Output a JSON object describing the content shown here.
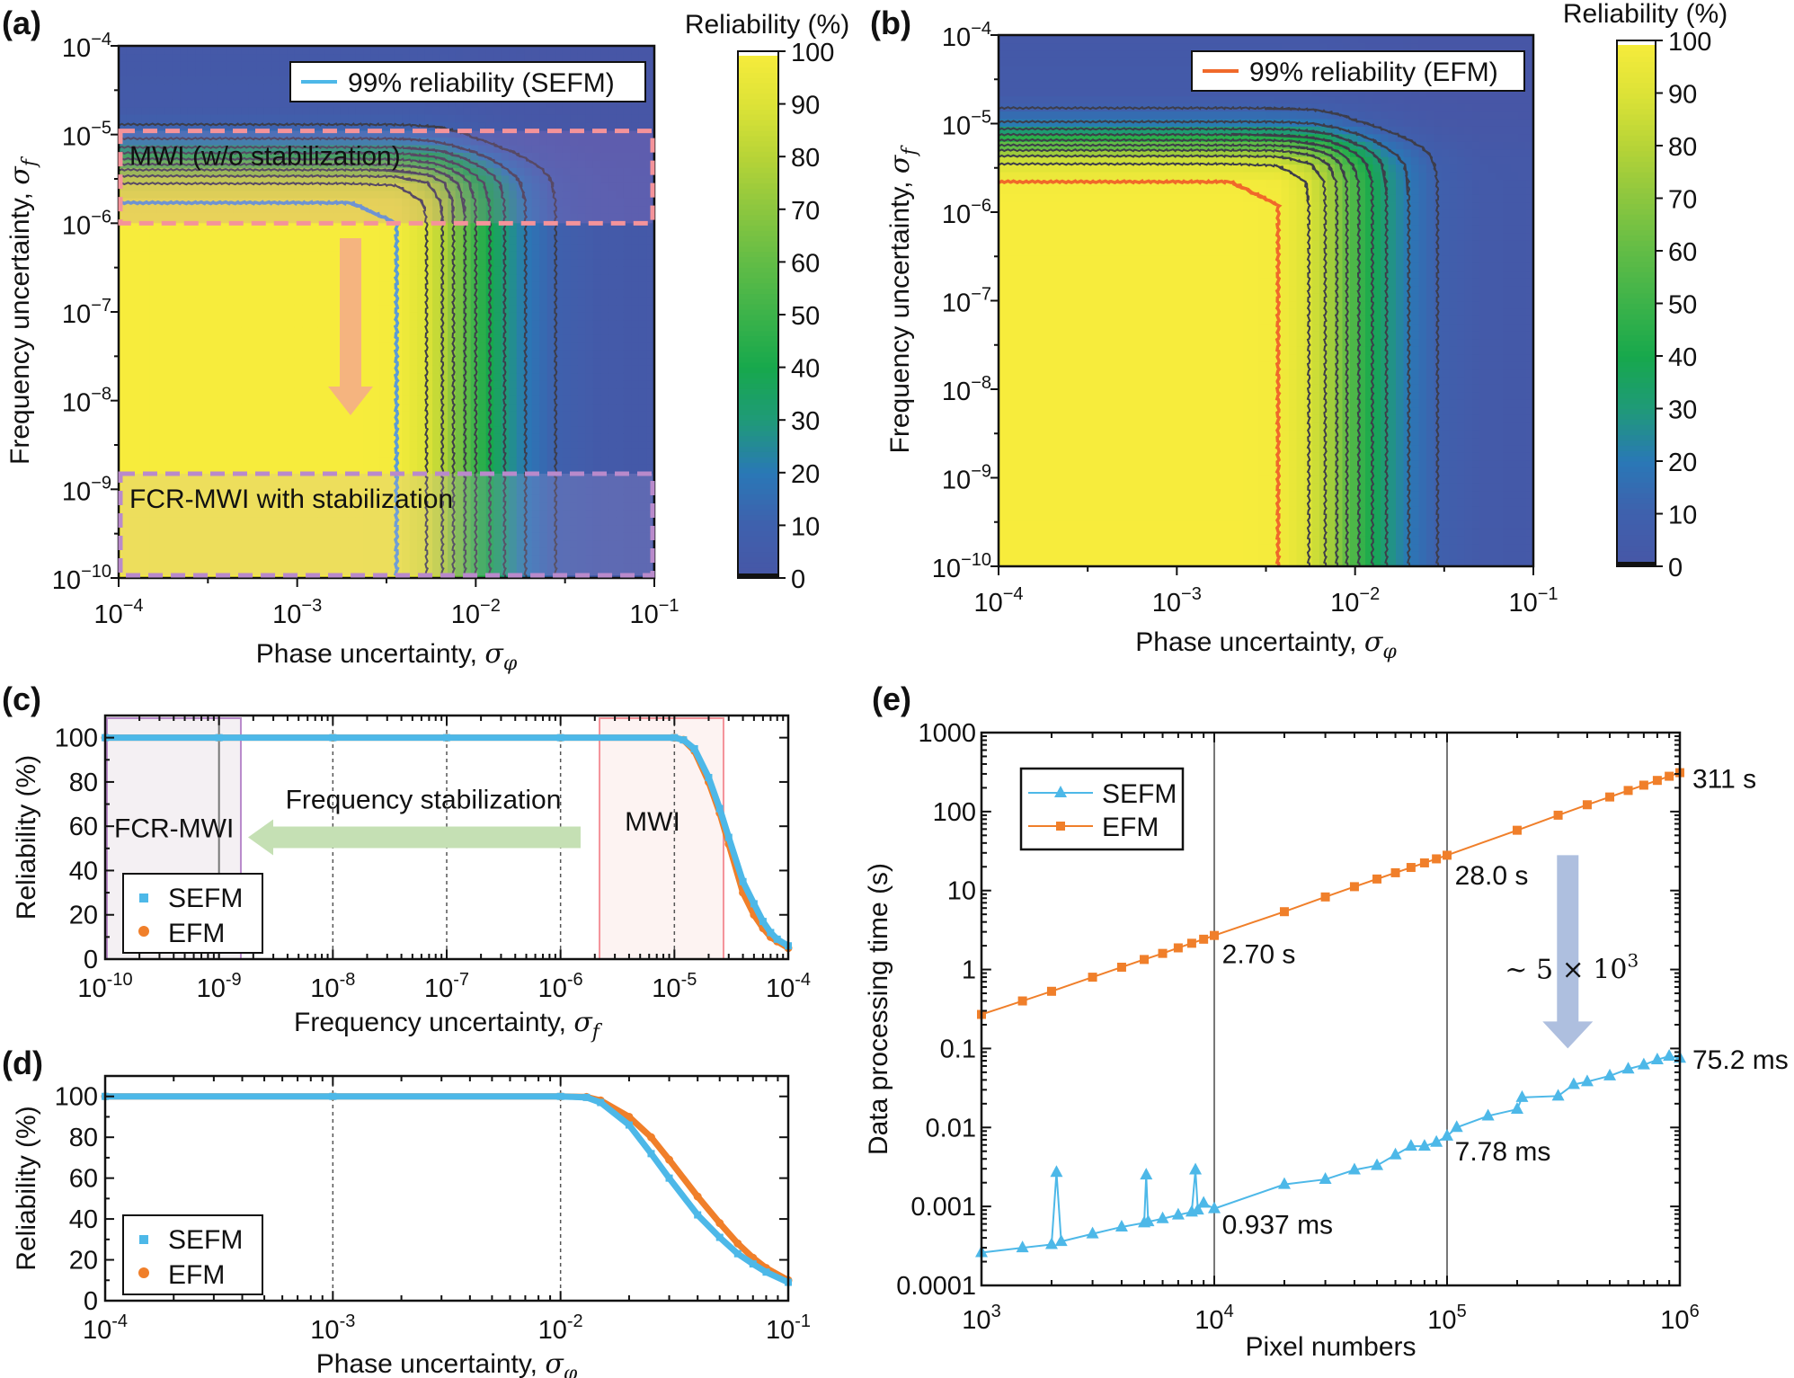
{
  "colorscale": [
    [
      0,
      "#4756a6"
    ],
    [
      10,
      "#3f60ad"
    ],
    [
      20,
      "#2a78b6"
    ],
    [
      30,
      "#1f9a78"
    ],
    [
      40,
      "#17a84c"
    ],
    [
      50,
      "#3cb34a"
    ],
    [
      60,
      "#62bc46"
    ],
    [
      70,
      "#8cc63f"
    ],
    [
      80,
      "#b7d437"
    ],
    [
      90,
      "#dde337"
    ],
    [
      100,
      "#f7ec3c"
    ]
  ],
  "colors": {
    "sefm": "#4db8e8",
    "efm": "#f07f2a",
    "contour": "#3d3d4a",
    "sefm_99": "#5b9bd5",
    "efm_99": "#f0692a",
    "mwi_box": "#f4939a",
    "fcr_box": "#b98acb",
    "stab_arrow": "#c5e0b4",
    "down_arrow_a": "#f4b183",
    "down_arrow_e": "#aebfdf"
  },
  "chart_data": [
    {
      "panel": "(a)",
      "type": "heatmap",
      "xlabel": "Phase uncertainty, ",
      "xsym": "σ",
      "xsub": "φ",
      "ylabel": "Frequency uncertainty, ",
      "ysym": "σ",
      "ysub": "f",
      "xscale": "log",
      "yscale": "log",
      "xlim": [
        0.0001,
        0.1
      ],
      "ylim": [
        1e-10,
        0.0001
      ],
      "xticks": [
        {
          "b": "10",
          "e": "−4"
        },
        {
          "b": "10",
          "e": "−3"
        },
        {
          "b": "10",
          "e": "−2"
        },
        {
          "b": "10",
          "e": "−1"
        }
      ],
      "yticks": [
        {
          "b": "10",
          "e": "−10"
        },
        {
          "b": "10",
          "e": "−9"
        },
        {
          "b": "10",
          "e": "−8"
        },
        {
          "b": "10",
          "e": "−7"
        },
        {
          "b": "10",
          "e": "−6"
        },
        {
          "b": "10",
          "e": "−5"
        },
        {
          "b": "10",
          "e": "−4"
        }
      ],
      "colorbar": {
        "title": "Reliability (%)",
        "range": [
          0,
          100
        ],
        "ticks": [
          "0",
          "10",
          "20",
          "30",
          "40",
          "50",
          "60",
          "70",
          "80",
          "90",
          "100"
        ]
      },
      "contour_levels": [
        10,
        20,
        30,
        40,
        50,
        60,
        70,
        80,
        90
      ],
      "highlight_level": 99,
      "legend": "99% reliability (SEFM)",
      "reliability_vs_phase": [
        [
          0.0001,
          100
        ],
        [
          0.002,
          100
        ],
        [
          0.0036,
          99
        ],
        [
          0.0053,
          90
        ],
        [
          0.0065,
          80
        ],
        [
          0.0075,
          70
        ],
        [
          0.0087,
          60
        ],
        [
          0.01,
          50
        ],
        [
          0.012,
          40
        ],
        [
          0.0145,
          30
        ],
        [
          0.019,
          20
        ],
        [
          0.028,
          10
        ],
        [
          0.05,
          4
        ],
        [
          0.1,
          3
        ]
      ],
      "reliability_vs_frequency": [
        [
          1e-10,
          100
        ],
        [
          1e-06,
          100
        ],
        [
          1.7e-06,
          99
        ],
        [
          2.8e-06,
          90
        ],
        [
          3.4e-06,
          80
        ],
        [
          4e-06,
          70
        ],
        [
          4.6e-06,
          60
        ],
        [
          5.3e-06,
          50
        ],
        [
          6.2e-06,
          40
        ],
        [
          7.2e-06,
          30
        ],
        [
          9e-06,
          20
        ],
        [
          1.3e-05,
          10
        ],
        [
          2e-05,
          4
        ],
        [
          0.0001,
          3
        ]
      ],
      "regions": [
        {
          "label": "MWI (w/o stabilization)",
          "frequency_range": [
            1e-06,
            1.1e-05
          ]
        },
        {
          "label": "FCR-MWI with stabilization",
          "frequency_range": [
            1e-10,
            1.5e-09
          ]
        }
      ]
    },
    {
      "panel": "(b)",
      "type": "heatmap",
      "xlabel": "Phase uncertainty, ",
      "xsym": "σ",
      "xsub": "φ",
      "ylabel": "Frequency uncertainty, ",
      "ysym": "σ",
      "ysub": "f",
      "xscale": "log",
      "yscale": "log",
      "xlim": [
        0.0001,
        0.1
      ],
      "ylim": [
        1e-10,
        0.0001
      ],
      "xticks": [
        {
          "b": "10",
          "e": "−4"
        },
        {
          "b": "10",
          "e": "−3"
        },
        {
          "b": "10",
          "e": "−2"
        },
        {
          "b": "10",
          "e": "−1"
        }
      ],
      "yticks": [
        {
          "b": "10",
          "e": "−10"
        },
        {
          "b": "10",
          "e": "−9"
        },
        {
          "b": "10",
          "e": "−8"
        },
        {
          "b": "10",
          "e": "−7"
        },
        {
          "b": "10",
          "e": "−6"
        },
        {
          "b": "10",
          "e": "−5"
        },
        {
          "b": "10",
          "e": "−4"
        }
      ],
      "colorbar": {
        "title": "Reliability (%)",
        "range": [
          0,
          100
        ],
        "ticks": [
          "0",
          "10",
          "20",
          "30",
          "40",
          "50",
          "60",
          "70",
          "80",
          "90",
          "100"
        ]
      },
      "contour_levels": [
        10,
        20,
        30,
        40,
        50,
        60,
        70,
        80,
        90
      ],
      "highlight_level": 99,
      "legend": "99% reliability (EFM)",
      "reliability_vs_phase": [
        [
          0.0001,
          100
        ],
        [
          0.002,
          100
        ],
        [
          0.0037,
          99
        ],
        [
          0.0055,
          90
        ],
        [
          0.0068,
          80
        ],
        [
          0.0079,
          70
        ],
        [
          0.009,
          60
        ],
        [
          0.0105,
          50
        ],
        [
          0.0125,
          40
        ],
        [
          0.015,
          30
        ],
        [
          0.02,
          20
        ],
        [
          0.029,
          10
        ],
        [
          0.05,
          4
        ],
        [
          0.1,
          3
        ]
      ],
      "reliability_vs_frequency": [
        [
          1e-10,
          100
        ],
        [
          1.2e-06,
          100
        ],
        [
          2.2e-06,
          99
        ],
        [
          3.5e-06,
          90
        ],
        [
          4.3e-06,
          80
        ],
        [
          5e-06,
          70
        ],
        [
          5.7e-06,
          60
        ],
        [
          6.5e-06,
          50
        ],
        [
          7.5e-06,
          40
        ],
        [
          8.7e-06,
          30
        ],
        [
          1.05e-05,
          20
        ],
        [
          1.5e-05,
          10
        ],
        [
          2.2e-05,
          4
        ],
        [
          0.0001,
          3
        ]
      ]
    },
    {
      "panel": "(c)",
      "type": "scatter",
      "xlabel": "Frequency uncertainty, ",
      "xsym": "σ",
      "xsub": "f",
      "ylabel": "Reliability (%)",
      "xscale": "log",
      "xlim": [
        1e-10,
        0.0001
      ],
      "ylim": [
        0,
        110
      ],
      "xticks": [
        {
          "b": "10",
          "e": "-10"
        },
        {
          "b": "10",
          "e": "-9"
        },
        {
          "b": "10",
          "e": "-8"
        },
        {
          "b": "10",
          "e": "-7"
        },
        {
          "b": "10",
          "e": "-6"
        },
        {
          "b": "10",
          "e": "-5"
        },
        {
          "b": "10",
          "e": "-4"
        }
      ],
      "yticks": [
        "0",
        "20",
        "40",
        "60",
        "80",
        "100"
      ],
      "legend_placement": "bottom-left",
      "series": [
        {
          "name": "SEFM",
          "marker": "square",
          "x": [
            1e-10,
            1e-09,
            1e-08,
            1e-07,
            1e-06,
            1e-05,
            1.2e-05,
            1.5e-05,
            2e-05,
            2.5e-05,
            3e-05,
            4e-05,
            5e-05,
            6e-05,
            7e-05,
            8e-05,
            0.0001
          ],
          "y": [
            100,
            100,
            100,
            100,
            100,
            100,
            99,
            95,
            82,
            68,
            55,
            35,
            25,
            17,
            12,
            9,
            6
          ]
        },
        {
          "name": "EFM",
          "marker": "circle",
          "x": [
            1e-10,
            1e-09,
            1e-08,
            1e-07,
            1e-06,
            1e-05,
            1.2e-05,
            1.5e-05,
            2e-05,
            2.5e-05,
            3e-05,
            4e-05,
            5e-05,
            6e-05,
            7e-05,
            8e-05,
            0.0001
          ],
          "y": [
            100,
            100,
            100,
            100,
            100,
            100,
            99,
            94,
            80,
            66,
            52,
            30,
            20,
            14,
            10,
            8,
            5
          ]
        }
      ],
      "regions": [
        {
          "label": "FCR-MWI",
          "x_range": [
            1e-10,
            1.5e-09
          ]
        },
        {
          "label": "MWI",
          "x_range": [
            2.2e-06,
            2.7e-05
          ]
        }
      ],
      "arrow_label": "Frequency stabilization"
    },
    {
      "panel": "(d)",
      "type": "scatter",
      "xlabel": "Phase uncertainty, ",
      "xsym": "σ",
      "xsub": "φ",
      "ylabel": "Reliability (%)",
      "xscale": "log",
      "xlim": [
        0.0001,
        0.1
      ],
      "ylim": [
        0,
        110
      ],
      "xticks": [
        {
          "b": "10",
          "e": "-4"
        },
        {
          "b": "10",
          "e": "-3"
        },
        {
          "b": "10",
          "e": "-2"
        },
        {
          "b": "10",
          "e": "-1"
        }
      ],
      "yticks": [
        "0",
        "20",
        "40",
        "60",
        "80",
        "100"
      ],
      "legend_placement": "bottom-left",
      "series": [
        {
          "name": "SEFM",
          "marker": "square",
          "x": [
            0.0001,
            0.001,
            0.01,
            0.013,
            0.015,
            0.02,
            0.025,
            0.03,
            0.04,
            0.05,
            0.06,
            0.07,
            0.08,
            0.1
          ],
          "y": [
            100,
            100,
            100,
            99.5,
            97,
            86,
            72,
            60,
            42,
            31,
            23,
            18,
            14,
            9
          ]
        },
        {
          "name": "EFM",
          "marker": "circle",
          "x": [
            0.0001,
            0.001,
            0.01,
            0.013,
            0.015,
            0.02,
            0.025,
            0.03,
            0.04,
            0.05,
            0.06,
            0.07,
            0.08,
            0.1
          ],
          "y": [
            100,
            100,
            100,
            99.7,
            98,
            90,
            80,
            69,
            51,
            38,
            28,
            21,
            16,
            10
          ]
        }
      ]
    },
    {
      "panel": "(e)",
      "type": "line",
      "xlabel": "Pixel numbers",
      "ylabel": "Data processing time (s)",
      "xscale": "log",
      "yscale": "log",
      "xlim": [
        1000,
        1000000
      ],
      "ylim": [
        0.0001,
        1000
      ],
      "xticks": [
        {
          "b": "10",
          "e": "3"
        },
        {
          "b": "10",
          "e": "4"
        },
        {
          "b": "10",
          "e": "5"
        },
        {
          "b": "10",
          "e": "6"
        }
      ],
      "yticks": [
        "0.0001",
        "0.001",
        "0.01",
        "0.1",
        "1",
        "10",
        "100",
        "1000"
      ],
      "legend_placement": "top-left",
      "series": [
        {
          "name": "SEFM",
          "marker": "triangle",
          "x": [
            1000,
            1500,
            2000,
            2100,
            2200,
            3000,
            4000,
            5000,
            5100,
            5200,
            6000,
            7000,
            8000,
            8300,
            8500,
            9000,
            10000,
            20000,
            30000,
            40000,
            50000,
            60000,
            70000,
            80000,
            90000,
            100000,
            110000,
            150000,
            200000,
            210000,
            300000,
            350000,
            400000,
            500000,
            600000,
            700000,
            800000,
            900000,
            1000000
          ],
          "y": [
            0.00026,
            0.0003,
            0.00033,
            0.0027,
            0.00036,
            0.00045,
            0.00055,
            0.00062,
            0.0025,
            0.00064,
            0.0007,
            0.00078,
            0.00085,
            0.0029,
            0.0009,
            0.0011,
            0.000937,
            0.0019,
            0.0022,
            0.0029,
            0.0033,
            0.0045,
            0.0058,
            0.0058,
            0.0065,
            0.00778,
            0.01,
            0.014,
            0.017,
            0.024,
            0.025,
            0.035,
            0.038,
            0.045,
            0.055,
            0.062,
            0.072,
            0.08,
            0.0752
          ]
        },
        {
          "name": "EFM",
          "marker": "square",
          "x": [
            1000,
            1500,
            2000,
            3000,
            4000,
            5000,
            6000,
            7000,
            8000,
            9000,
            10000,
            20000,
            30000,
            40000,
            50000,
            60000,
            70000,
            80000,
            90000,
            100000,
            200000,
            300000,
            400000,
            500000,
            600000,
            700000,
            800000,
            900000,
            1000000
          ],
          "y": [
            0.27,
            0.4,
            0.53,
            0.8,
            1.07,
            1.34,
            1.6,
            1.88,
            2.15,
            2.42,
            2.7,
            5.4,
            8.3,
            11.2,
            14,
            16.8,
            19.6,
            22.4,
            25.2,
            28,
            58,
            90,
            122,
            153,
            185,
            216,
            248,
            280,
            311
          ]
        }
      ],
      "annotations": [
        "2.70 s",
        "28.0 s",
        "311 s",
        "0.937 ms",
        "7.78 ms",
        "75.2 ms"
      ],
      "speedup": {
        "prefix": "~ 5 × 10",
        "exp": "3"
      }
    }
  ]
}
